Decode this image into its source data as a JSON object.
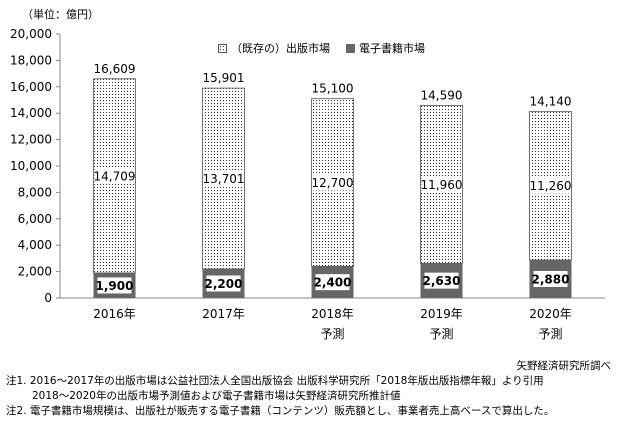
{
  "unit_label": "（単位：億円）",
  "source": "矢野経済研究所調べ",
  "notes": [
    "注1.  2016～2017年の出版市場は公益社団法人全国出版協会 出版科学研究所「2018年版出版指標年報」より引用",
    "2018～2020年の出版市場予測値および電子書籍市場は矢野経済研究所推計値",
    "注2.  電子書籍市場規模は、出版社が販売する電子書籍（コンテンツ）販売額とし、事業者売上高ベースで算出した。"
  ],
  "colors": {
    "ebook": "#666666",
    "print_border": "#555555",
    "axis": "#888888",
    "grid": "#bbbbbb"
  },
  "chart_data": {
    "type": "bar",
    "stacked": true,
    "categories": [
      "2016年",
      "2017年",
      "2018年",
      "2019年",
      "2020年"
    ],
    "category_sublabels": [
      "",
      "",
      "予測",
      "予測",
      "予測"
    ],
    "series": [
      {
        "name": "電子書籍市場",
        "values": [
          1900,
          2200,
          2400,
          2630,
          2880
        ]
      },
      {
        "name": "（既存の）出版市場",
        "values": [
          14709,
          13701,
          12700,
          11960,
          11260
        ]
      }
    ],
    "totals": [
      16609,
      15901,
      15100,
      14590,
      14140
    ],
    "ylim": [
      0,
      20000
    ],
    "yticks": [
      "0",
      "2,000",
      "4,000",
      "6,000",
      "8,000",
      "10,000",
      "12,000",
      "14,000",
      "16,000",
      "18,000",
      "20,000"
    ],
    "total_labels": [
      "16,609",
      "15,901",
      "15,100",
      "14,590",
      "14,140"
    ],
    "print_labels": [
      "14,709",
      "13,701",
      "12,700",
      "11,960",
      "11,260"
    ],
    "ebook_labels": [
      "1,900",
      "2,200",
      "2,400",
      "2,630",
      "2,880"
    ],
    "legend": [
      "（既存の）出版市場",
      "電子書籍市場"
    ],
    "legend_position": "top",
    "grid": false
  }
}
